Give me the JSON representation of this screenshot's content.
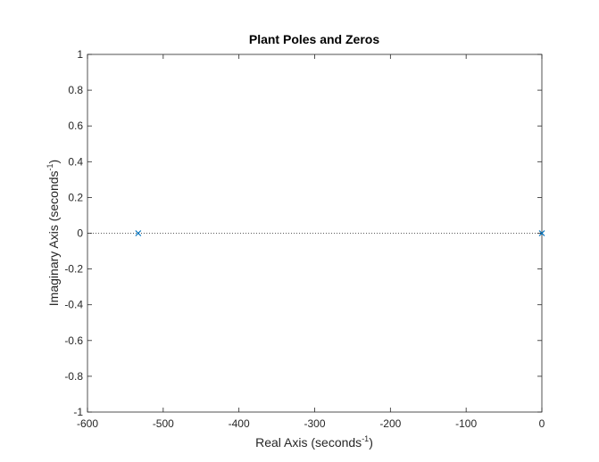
{
  "chart_data": {
    "type": "scatter",
    "title": "Plant Poles and Zeros",
    "xlabel": {
      "base": "Real Axis (seconds",
      "sup": "-1",
      "end": ")"
    },
    "ylabel": {
      "base": "Imaginary Axis (seconds",
      "sup": "-1",
      "end": ")"
    },
    "xlim": [
      -600,
      0
    ],
    "ylim": [
      -1,
      1
    ],
    "x_ticks": [
      -600,
      -500,
      -400,
      -300,
      -200,
      -100,
      0
    ],
    "y_ticks": [
      -1,
      -0.8,
      -0.6,
      -0.4,
      -0.2,
      0,
      0.2,
      0.4,
      0.6,
      0.8,
      1
    ],
    "x_tick_labels": [
      "-600",
      "-500",
      "-400",
      "-300",
      "-200",
      "-100",
      "0"
    ],
    "y_tick_labels": [
      "-1",
      "-0.8",
      "-0.6",
      "-0.4",
      "-0.2",
      "0",
      "0.2",
      "0.4",
      "0.6",
      "0.8",
      "1"
    ],
    "grid": false,
    "reference_line_y": 0,
    "series": [
      {
        "marker": "x",
        "color": "#0072bd",
        "points": [
          {
            "x": -533,
            "y": 0
          },
          {
            "x": 0,
            "y": 0
          }
        ]
      }
    ]
  }
}
